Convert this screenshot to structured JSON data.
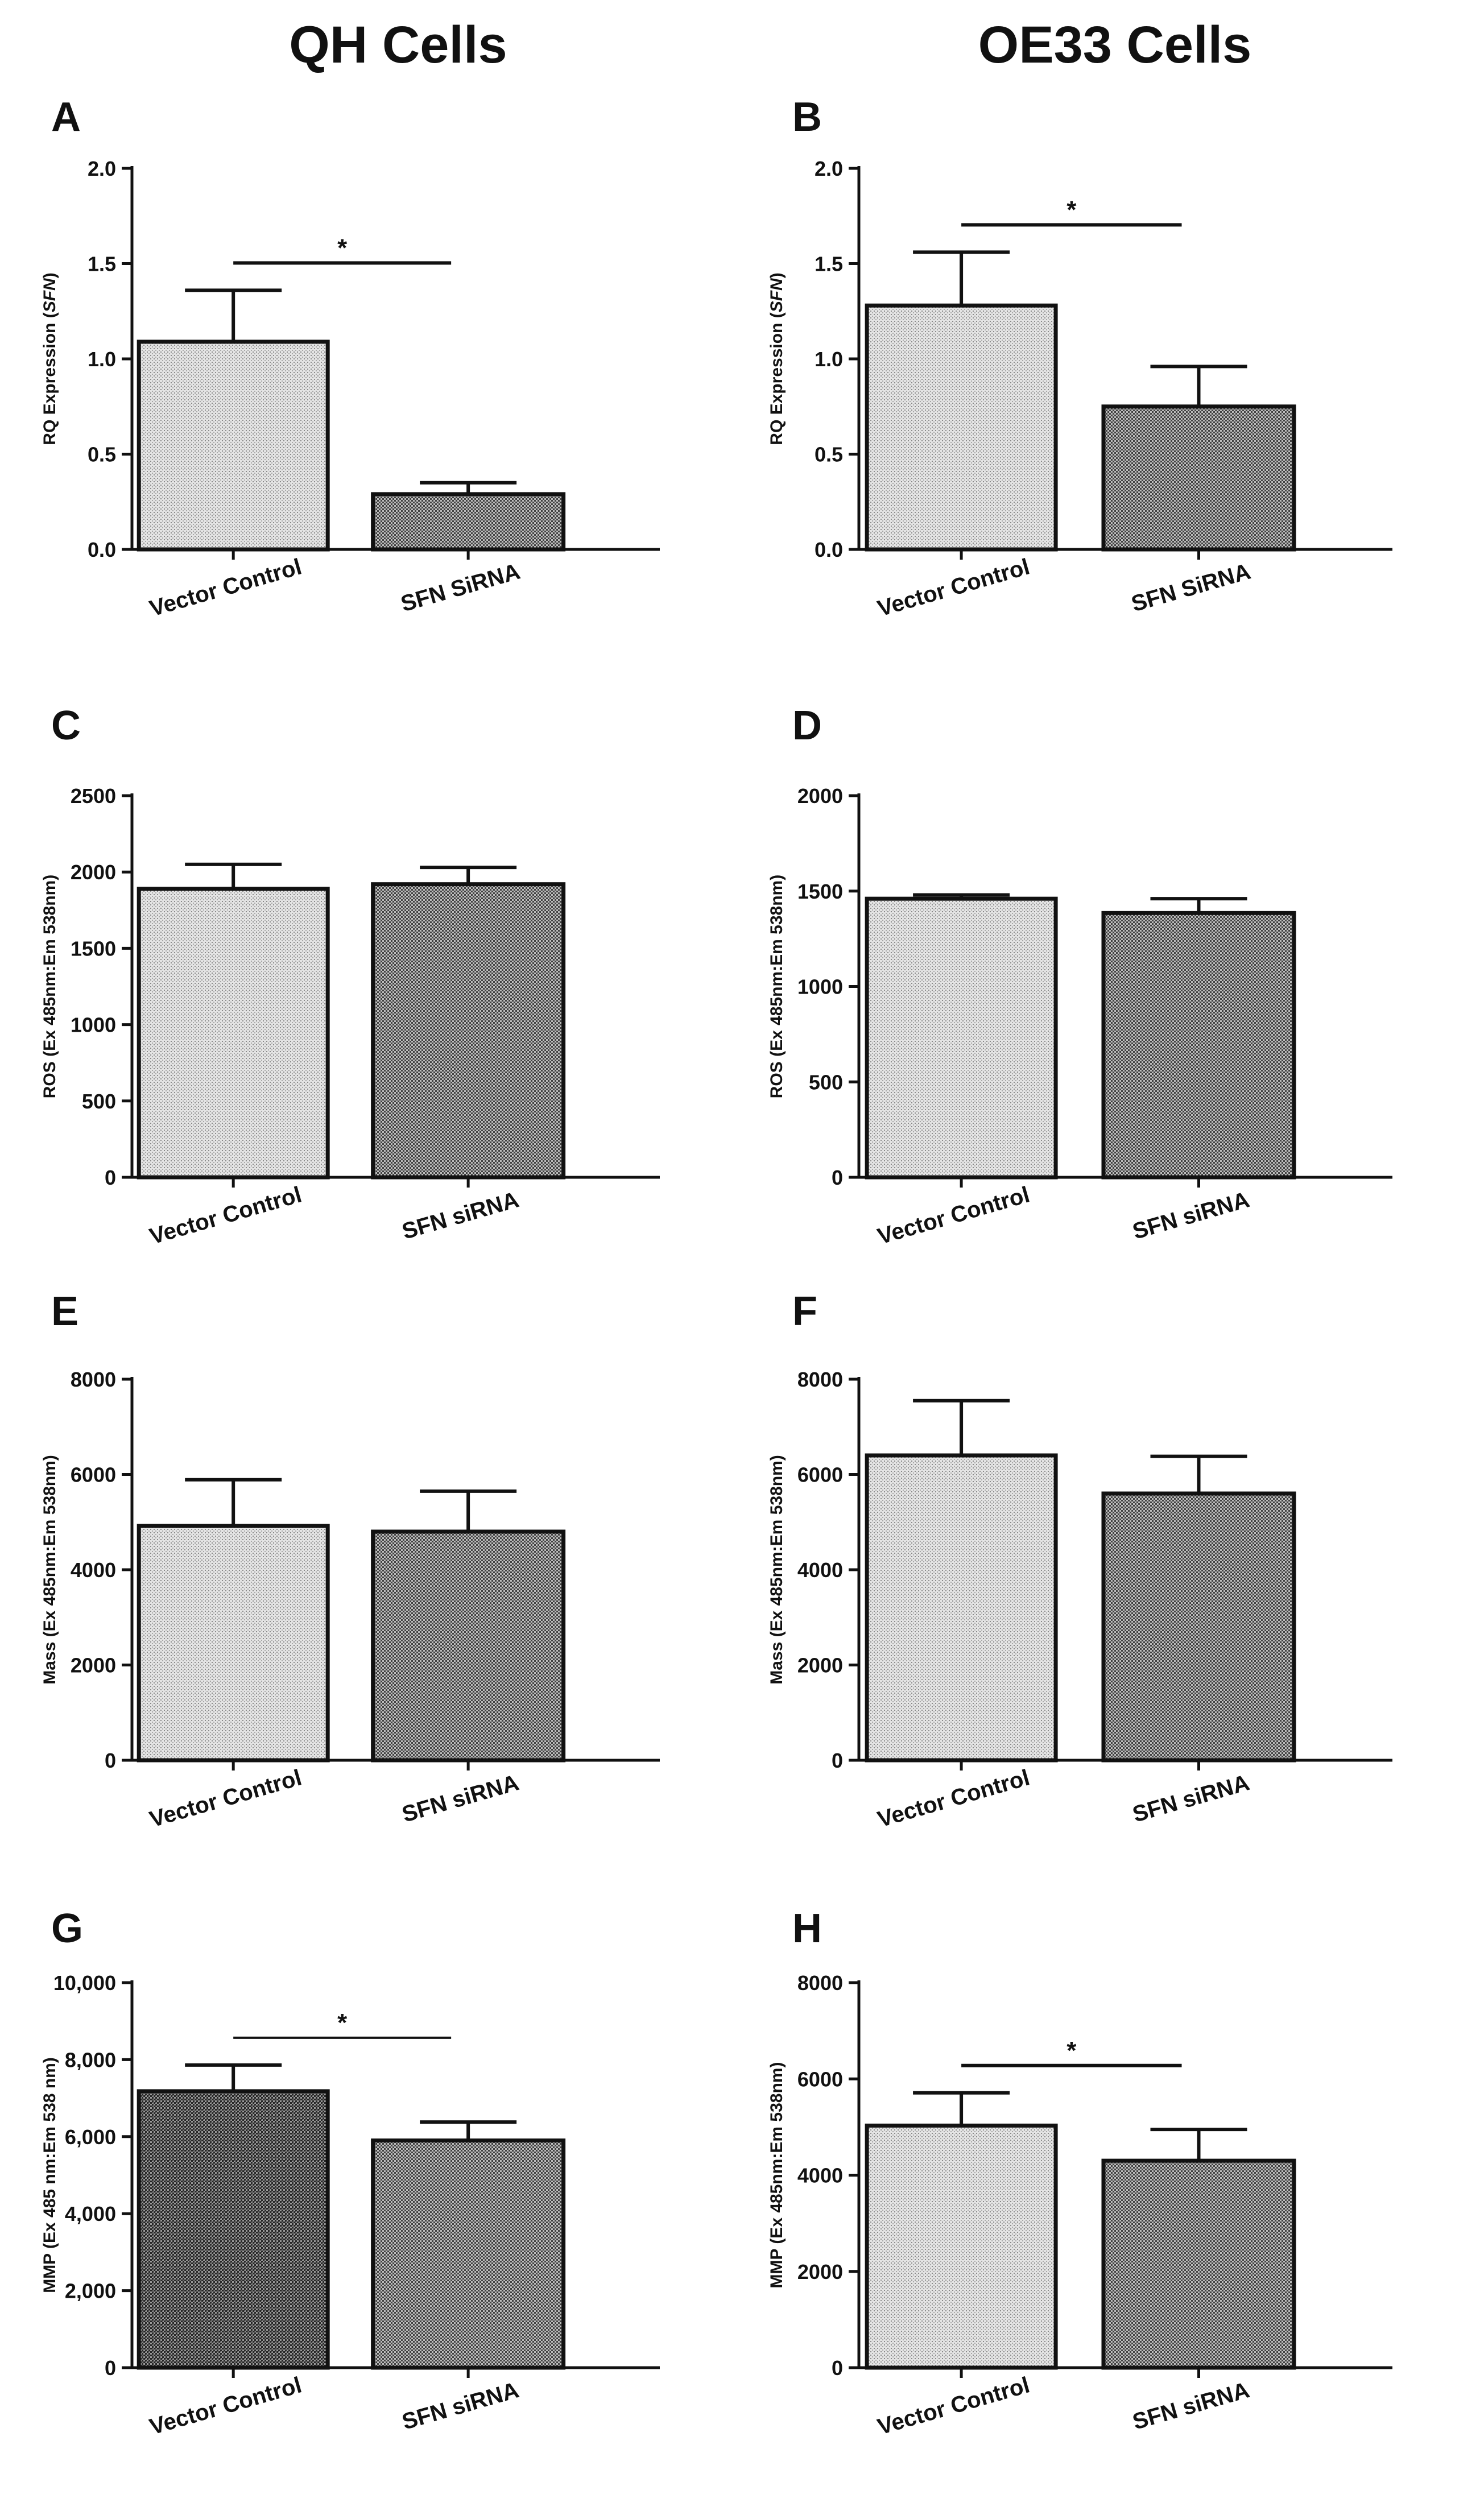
{
  "column_titles": [
    "QH Cells",
    "OE33 Cells"
  ],
  "chart_data": [
    {
      "panel": "A",
      "type": "bar",
      "column": 0,
      "ylabel_parts": [
        "RQ Expression (",
        "SFN",
        ")"
      ],
      "categories": [
        "Vector Control",
        "SFN SiRNA"
      ],
      "values": [
        1.09,
        0.29
      ],
      "errors": [
        0.27,
        0.06
      ],
      "ylim": [
        0,
        2.0
      ],
      "ticks": [
        "0.0",
        "0.5",
        "1.0",
        "1.5",
        "2.0"
      ],
      "significance": "*",
      "fill_styles": [
        "light",
        "dark"
      ]
    },
    {
      "panel": "B",
      "type": "bar",
      "column": 1,
      "ylabel_parts": [
        "RQ Expression (",
        "SFN",
        ")"
      ],
      "categories": [
        "Vector Control",
        "SFN SiRNA"
      ],
      "values": [
        1.28,
        0.75
      ],
      "errors": [
        0.28,
        0.21
      ],
      "ylim": [
        0,
        2.0
      ],
      "ticks": [
        "0.0",
        "0.5",
        "1.0",
        "1.5",
        "2.0"
      ],
      "significance": "*",
      "fill_styles": [
        "light",
        "dark"
      ]
    },
    {
      "panel": "C",
      "type": "bar",
      "column": 0,
      "ylabel_parts": [
        "ROS (Ex 485nm:Em 538nm)"
      ],
      "categories": [
        "Vector Control",
        "SFN siRNA"
      ],
      "values": [
        1890,
        1920
      ],
      "errors": [
        160,
        110
      ],
      "ylim": [
        0,
        2500
      ],
      "ticks": [
        "0",
        "500",
        "1000",
        "1500",
        "2000",
        "2500"
      ],
      "significance": "",
      "fill_styles": [
        "light",
        "dark"
      ]
    },
    {
      "panel": "D",
      "type": "bar",
      "column": 1,
      "ylabel_parts": [
        "ROS (Ex 485nm:Em 538nm)"
      ],
      "categories": [
        "Vector Control",
        "SFN siRNA"
      ],
      "values": [
        1460,
        1385
      ],
      "errors": [
        20,
        75
      ],
      "ylim": [
        0,
        2000
      ],
      "ticks": [
        "0",
        "500",
        "1000",
        "1500",
        "2000"
      ],
      "significance": "",
      "fill_styles": [
        "light",
        "dark"
      ]
    },
    {
      "panel": "E",
      "type": "bar",
      "column": 0,
      "ylabel_parts": [
        "Mass (Ex 485nm:Em 538nm)"
      ],
      "categories": [
        "Vector Control",
        "SFN siRNA"
      ],
      "values": [
        4920,
        4800
      ],
      "errors": [
        970,
        850
      ],
      "ylim": [
        0,
        8000
      ],
      "ticks": [
        "0",
        "2000",
        "4000",
        "6000",
        "8000"
      ],
      "significance": "",
      "fill_styles": [
        "light",
        "dark"
      ]
    },
    {
      "panel": "F",
      "type": "bar",
      "column": 1,
      "ylabel_parts": [
        "Mass (Ex 485nm:Em 538nm)"
      ],
      "categories": [
        "Vector Control",
        "SFN siRNA"
      ],
      "values": [
        6400,
        5600
      ],
      "errors": [
        1150,
        780
      ],
      "ylim": [
        0,
        8000
      ],
      "ticks": [
        "0",
        "2000",
        "4000",
        "6000",
        "8000"
      ],
      "significance": "",
      "fill_styles": [
        "light",
        "dark"
      ]
    },
    {
      "panel": "G",
      "type": "bar",
      "column": 0,
      "ylabel_parts": [
        "MMP (Ex 485 nm:Em 538 nm)"
      ],
      "categories": [
        "Vector Control",
        "SFN siRNA"
      ],
      "values": [
        7180,
        5900
      ],
      "errors": [
        680,
        480
      ],
      "ylim": [
        0,
        10000
      ],
      "ticks": [
        "0",
        "2,000",
        "4,000",
        "6,000",
        "8,000",
        "10,000"
      ],
      "significance": "*",
      "fill_styles": [
        "darkest",
        "dark"
      ]
    },
    {
      "panel": "H",
      "type": "bar",
      "column": 1,
      "ylabel_parts": [
        "MMP (Ex 485nm:Em 538nm)"
      ],
      "categories": [
        "Vector Control",
        "SFN siRNA"
      ],
      "values": [
        5030,
        4300
      ],
      "errors": [
        680,
        650
      ],
      "ylim": [
        0,
        8000
      ],
      "ticks": [
        "0",
        "2000",
        "4000",
        "6000",
        "8000"
      ],
      "significance": "*",
      "fill_styles": [
        "light",
        "dark"
      ]
    }
  ]
}
